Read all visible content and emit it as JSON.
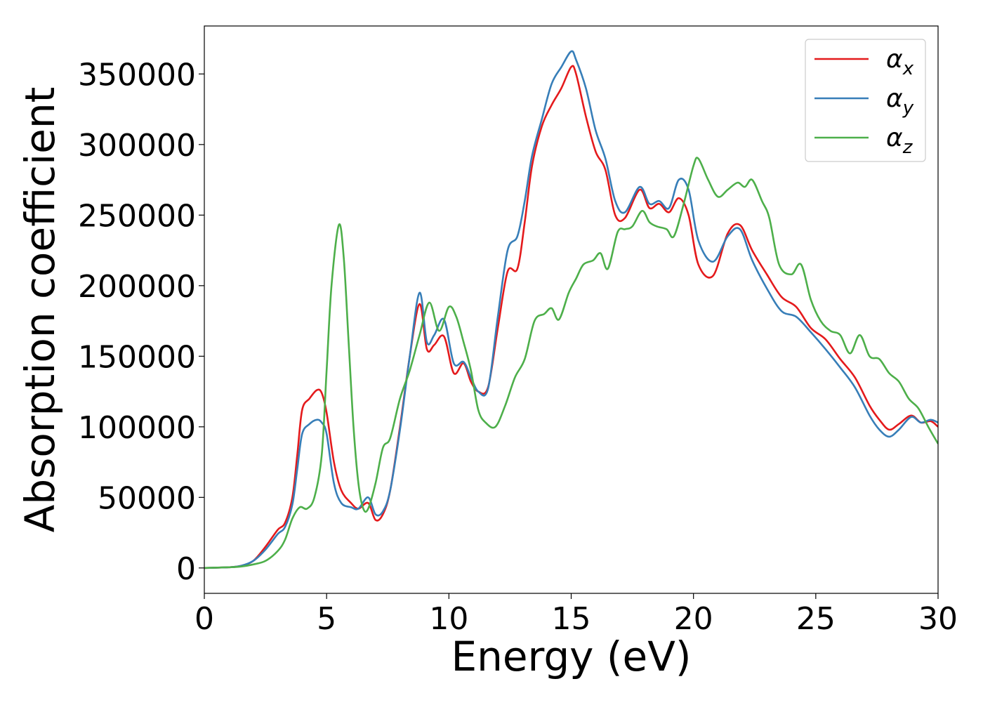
{
  "chart_data": {
    "type": "line",
    "title": "",
    "xlabel": "Energy (eV)",
    "ylabel": "Absorption coefficient",
    "xlim": [
      0,
      30
    ],
    "ylim": [
      -18000,
      384000
    ],
    "xticks": [
      0,
      5,
      10,
      15,
      20,
      25,
      30
    ],
    "yticks": [
      0,
      50000,
      100000,
      150000,
      200000,
      250000,
      300000,
      350000
    ],
    "grid": false,
    "legend_position": "top-right",
    "series": [
      {
        "name": "α_x",
        "legend_base": "α",
        "legend_sub": "x",
        "color": "#e41a1c",
        "x": [
          0,
          1,
          1.5,
          2,
          2.5,
          3,
          3.3,
          3.6,
          3.8,
          4,
          4.3,
          4.6,
          4.8,
          5,
          5.3,
          5.6,
          6,
          6.3,
          6.7,
          7,
          7.3,
          7.6,
          8,
          8.4,
          8.8,
          9.1,
          9.4,
          9.8,
          10.2,
          10.6,
          10.9,
          11.2,
          11.6,
          12,
          12.4,
          12.8,
          13.1,
          13.4,
          13.8,
          14.2,
          14.6,
          15,
          15.2,
          15.6,
          16,
          16.4,
          16.8,
          17.2,
          17.8,
          18.2,
          18.6,
          19,
          19.4,
          19.8,
          20.2,
          20.8,
          21.4,
          21.9,
          22.4,
          23,
          23.6,
          24.2,
          24.8,
          25.4,
          26,
          26.6,
          27.2,
          27.6,
          28,
          28.4,
          28.9,
          29.3,
          29.7,
          30
        ],
        "y": [
          0,
          500,
          1500,
          5000,
          15000,
          27000,
          32000,
          50000,
          80000,
          112000,
          120000,
          126000,
          124000,
          110000,
          75000,
          55000,
          46000,
          42000,
          46000,
          34000,
          38000,
          55000,
          100000,
          150000,
          187000,
          155000,
          158000,
          164000,
          138000,
          145000,
          132000,
          125000,
          128000,
          170000,
          210000,
          212000,
          245000,
          285000,
          313000,
          328000,
          340000,
          355000,
          350000,
          320000,
          295000,
          282000,
          250000,
          248000,
          268000,
          255000,
          258000,
          252000,
          262000,
          250000,
          215000,
          207000,
          237000,
          243000,
          225000,
          208000,
          192000,
          185000,
          170000,
          162000,
          148000,
          135000,
          115000,
          105000,
          98000,
          102000,
          108000,
          103000,
          104000,
          100000
        ]
      },
      {
        "name": "α_y",
        "legend_base": "α",
        "legend_sub": "y",
        "color": "#377eb8",
        "x": [
          0,
          1,
          1.5,
          2,
          2.5,
          3,
          3.3,
          3.6,
          3.8,
          4,
          4.3,
          4.6,
          4.8,
          5,
          5.3,
          5.6,
          6,
          6.3,
          6.7,
          7,
          7.3,
          7.6,
          8,
          8.4,
          8.8,
          9.1,
          9.4,
          9.8,
          10.2,
          10.6,
          10.9,
          11.2,
          11.6,
          12,
          12.4,
          12.8,
          13.1,
          13.4,
          13.8,
          14.2,
          14.6,
          15,
          15.2,
          15.6,
          16,
          16.4,
          16.8,
          17.2,
          17.8,
          18.2,
          18.6,
          19,
          19.4,
          19.8,
          20.2,
          20.8,
          21.4,
          21.9,
          22.4,
          23,
          23.6,
          24.2,
          24.8,
          25.4,
          26,
          26.6,
          27.2,
          27.6,
          28,
          28.4,
          28.9,
          29.3,
          29.7,
          30
        ],
        "y": [
          0,
          500,
          1500,
          5000,
          13000,
          24000,
          29000,
          45000,
          70000,
          95000,
          102000,
          105000,
          103000,
          95000,
          60000,
          46000,
          43000,
          42000,
          50000,
          38000,
          40000,
          55000,
          98000,
          150000,
          195000,
          160000,
          165000,
          176000,
          145000,
          146000,
          135000,
          125000,
          127000,
          178000,
          225000,
          235000,
          260000,
          292000,
          318000,
          343000,
          355000,
          366000,
          360000,
          340000,
          310000,
          290000,
          260000,
          252000,
          270000,
          258000,
          260000,
          255000,
          275000,
          268000,
          232000,
          217000,
          235000,
          240000,
          218000,
          198000,
          182000,
          178000,
          167000,
          155000,
          142000,
          128000,
          108000,
          98000,
          93000,
          98000,
          107000,
          103000,
          105000,
          103000
        ]
      },
      {
        "name": "α_z",
        "legend_base": "α",
        "legend_sub": "z",
        "color": "#4daf4a",
        "x": [
          0,
          1,
          1.5,
          2,
          2.5,
          3,
          3.3,
          3.6,
          3.9,
          4.2,
          4.5,
          4.8,
          5,
          5.2,
          5.5,
          5.7,
          5.9,
          6.1,
          6.3,
          6.5,
          6.7,
          7,
          7.3,
          7.6,
          8,
          8.4,
          8.8,
          9.2,
          9.6,
          10,
          10.3,
          10.6,
          10.9,
          11.2,
          11.5,
          11.9,
          12.3,
          12.7,
          13.1,
          13.5,
          13.9,
          14.2,
          14.5,
          14.9,
          15.2,
          15.5,
          15.9,
          16.2,
          16.5,
          16.9,
          17.2,
          17.5,
          17.9,
          18.2,
          18.5,
          18.9,
          19.2,
          19.6,
          20,
          20.2,
          20.6,
          21,
          21.4,
          21.8,
          22.1,
          22.4,
          22.8,
          23.1,
          23.5,
          24,
          24.4,
          24.8,
          25.2,
          25.6,
          26,
          26.4,
          26.8,
          27.2,
          27.6,
          28,
          28.4,
          28.8,
          29.2,
          29.6,
          30
        ],
        "y": [
          0,
          500,
          1000,
          2500,
          5000,
          12000,
          20000,
          35000,
          43000,
          42000,
          50000,
          80000,
          140000,
          200000,
          243000,
          220000,
          160000,
          100000,
          60000,
          42000,
          42000,
          60000,
          85000,
          92000,
          120000,
          140000,
          165000,
          188000,
          168000,
          185000,
          178000,
          160000,
          140000,
          112000,
          103000,
          100000,
          115000,
          135000,
          148000,
          175000,
          180000,
          184000,
          176000,
          195000,
          205000,
          215000,
          218000,
          223000,
          212000,
          238000,
          240000,
          242000,
          253000,
          245000,
          242000,
          240000,
          235000,
          258000,
          285000,
          290000,
          275000,
          263000,
          268000,
          273000,
          270000,
          275000,
          260000,
          248000,
          215000,
          208000,
          215000,
          190000,
          175000,
          168000,
          165000,
          152000,
          165000,
          150000,
          148000,
          138000,
          132000,
          120000,
          113000,
          100000,
          88000
        ]
      }
    ]
  }
}
